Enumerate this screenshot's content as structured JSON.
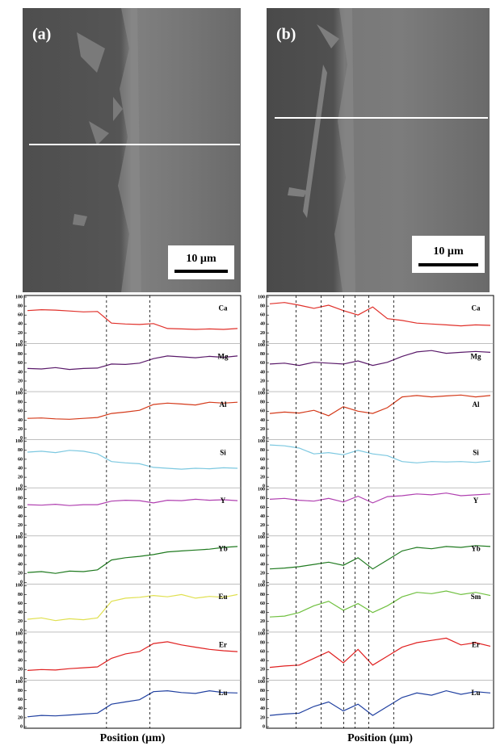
{
  "images": [
    {
      "label": "(a)",
      "scale_bar": "10 µm"
    },
    {
      "label": "(b)",
      "scale_bar": "10 µm"
    }
  ],
  "chart_data": [
    {
      "type": "line",
      "x_label": "Position (µm)",
      "ylim": [
        0,
        100
      ],
      "yticks": [
        0,
        20,
        40,
        60,
        80,
        100
      ],
      "series": [
        {
          "name": "Ca",
          "color": "#e0302a",
          "values": [
            70,
            72,
            71,
            69,
            67,
            68,
            42,
            40,
            39,
            41,
            30,
            29,
            28,
            29,
            28,
            30
          ]
        },
        {
          "name": "Mg",
          "color": "#5a1a6a",
          "values": [
            48,
            47,
            50,
            46,
            48,
            49,
            58,
            57,
            60,
            70,
            76,
            74,
            72,
            75,
            73,
            76
          ]
        },
        {
          "name": "Al",
          "color": "#d43a1a",
          "values": [
            44,
            45,
            43,
            42,
            44,
            46,
            55,
            58,
            62,
            75,
            78,
            76,
            74,
            80,
            78,
            80
          ]
        },
        {
          "name": "Si",
          "color": "#7cc8e0",
          "values": [
            76,
            78,
            75,
            80,
            78,
            72,
            55,
            52,
            50,
            42,
            40,
            38,
            40,
            39,
            41,
            40
          ]
        },
        {
          "name": "Y",
          "color": "#b040b0",
          "values": [
            66,
            65,
            67,
            64,
            66,
            66,
            74,
            76,
            75,
            70,
            76,
            75,
            78,
            76,
            77,
            75
          ]
        },
        {
          "name": "Yb",
          "color": "#1f7a1f",
          "values": [
            22,
            24,
            20,
            25,
            24,
            28,
            50,
            55,
            58,
            62,
            68,
            70,
            72,
            74,
            78,
            80
          ]
        },
        {
          "name": "Eu",
          "color": "#e0e050",
          "values": [
            25,
            28,
            22,
            26,
            24,
            28,
            65,
            72,
            74,
            78,
            75,
            80,
            72,
            76,
            74,
            80
          ]
        },
        {
          "name": "Er",
          "color": "#e02020",
          "values": [
            18,
            20,
            19,
            22,
            24,
            26,
            45,
            55,
            60,
            78,
            82,
            75,
            70,
            65,
            62,
            60
          ]
        },
        {
          "name": "Lu",
          "color": "#2040a0",
          "values": [
            22,
            25,
            24,
            26,
            28,
            30,
            50,
            55,
            60,
            78,
            80,
            76,
            74,
            80,
            76,
            75
          ]
        }
      ]
    },
    {
      "type": "line",
      "x_label": "Position (µm)",
      "ylim": [
        0,
        100
      ],
      "yticks": [
        0,
        20,
        40,
        60,
        80,
        100
      ],
      "series": [
        {
          "name": "Ca",
          "color": "#e0302a",
          "values": [
            85,
            88,
            82,
            75,
            82,
            70,
            60,
            78,
            52,
            48,
            42,
            40,
            38,
            36,
            38,
            37
          ]
        },
        {
          "name": "Mg",
          "color": "#5a1a6a",
          "values": [
            58,
            60,
            55,
            62,
            60,
            58,
            65,
            55,
            62,
            75,
            85,
            88,
            82,
            84,
            86,
            84
          ]
        },
        {
          "name": "Al",
          "color": "#d43a1a",
          "values": [
            55,
            58,
            56,
            62,
            50,
            70,
            60,
            55,
            68,
            92,
            95,
            92,
            94,
            96,
            92,
            95
          ]
        },
        {
          "name": "Si",
          "color": "#7cc8e0",
          "values": [
            92,
            90,
            85,
            72,
            75,
            70,
            80,
            72,
            68,
            55,
            52,
            55,
            54,
            55,
            53,
            56
          ]
        },
        {
          "name": "Y",
          "color": "#b040b0",
          "values": [
            78,
            80,
            76,
            74,
            80,
            72,
            85,
            70,
            84,
            86,
            90,
            88,
            92,
            86,
            88,
            90
          ]
        },
        {
          "name": "Yb",
          "color": "#1f7a1f",
          "values": [
            30,
            32,
            35,
            40,
            45,
            38,
            55,
            30,
            50,
            70,
            78,
            75,
            80,
            78,
            82,
            80
          ]
        },
        {
          "name": "Sm",
          "color": "#70c040",
          "values": [
            30,
            32,
            40,
            55,
            65,
            45,
            60,
            40,
            55,
            75,
            85,
            82,
            88,
            80,
            85,
            78
          ]
        },
        {
          "name": "Er",
          "color": "#e02020",
          "values": [
            25,
            28,
            30,
            45,
            60,
            35,
            65,
            30,
            50,
            70,
            80,
            85,
            90,
            75,
            80,
            72
          ]
        },
        {
          "name": "Lu",
          "color": "#2040a0",
          "values": [
            25,
            28,
            30,
            45,
            55,
            35,
            50,
            25,
            45,
            65,
            75,
            70,
            80,
            72,
            78,
            75
          ]
        }
      ]
    }
  ]
}
